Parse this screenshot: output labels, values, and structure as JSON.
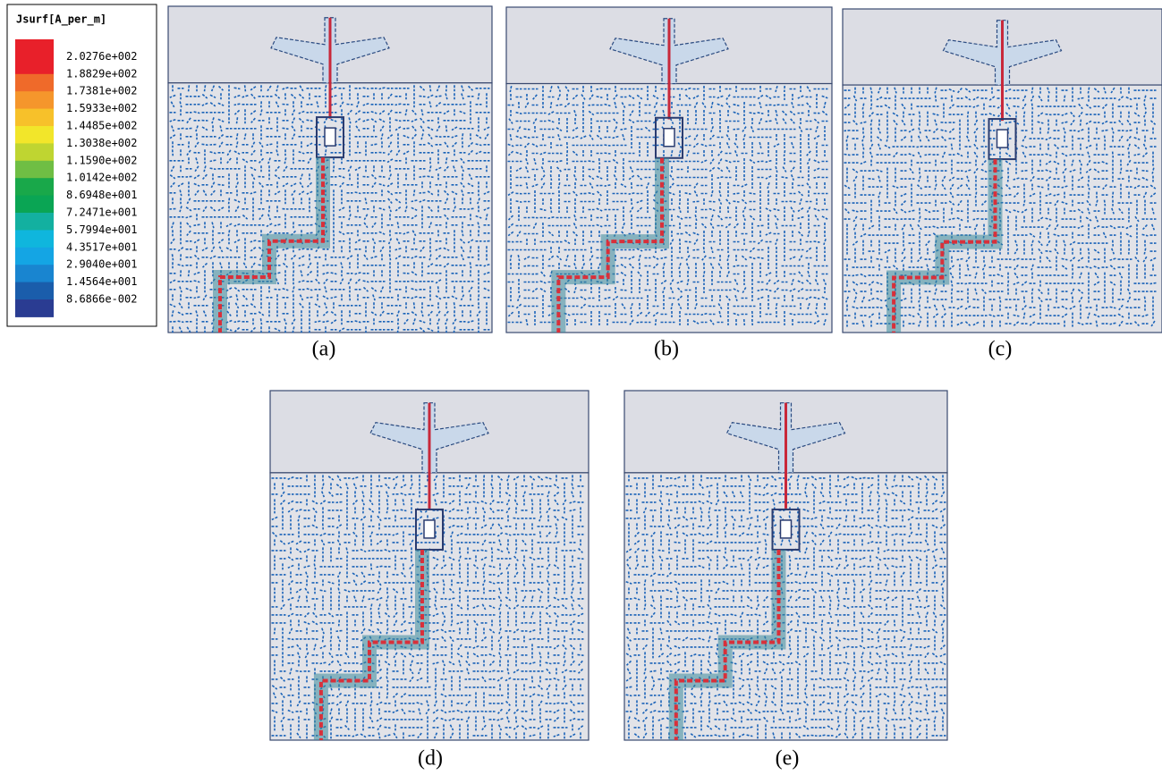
{
  "legend": {
    "title": "Jsurf[A_per_m]",
    "labels": [
      "2.0276e+002",
      "1.8829e+002",
      "1.7381e+002",
      "1.5933e+002",
      "1.4485e+002",
      "1.3038e+002",
      "1.1590e+002",
      "1.0142e+002",
      "8.6948e+001",
      "7.2471e+001",
      "5.7994e+001",
      "4.3517e+001",
      "2.9040e+001",
      "1.4564e+001",
      "8.6866e-002"
    ],
    "colors": [
      "#e8202a",
      "#ef6a2a",
      "#f5962c",
      "#f7c12a",
      "#f2e62a",
      "#bfd531",
      "#6fbe44",
      "#19a84a",
      "#0aa554",
      "#13b0a0",
      "#0fb6dd",
      "#14a5e4",
      "#1985d0",
      "#1a5dab",
      "#2a3c92"
    ]
  },
  "panels": [
    {
      "label": "(a)"
    },
    {
      "label": "(b)"
    },
    {
      "label": "(c)"
    },
    {
      "label": "(d)"
    },
    {
      "label": "(e)"
    }
  ]
}
